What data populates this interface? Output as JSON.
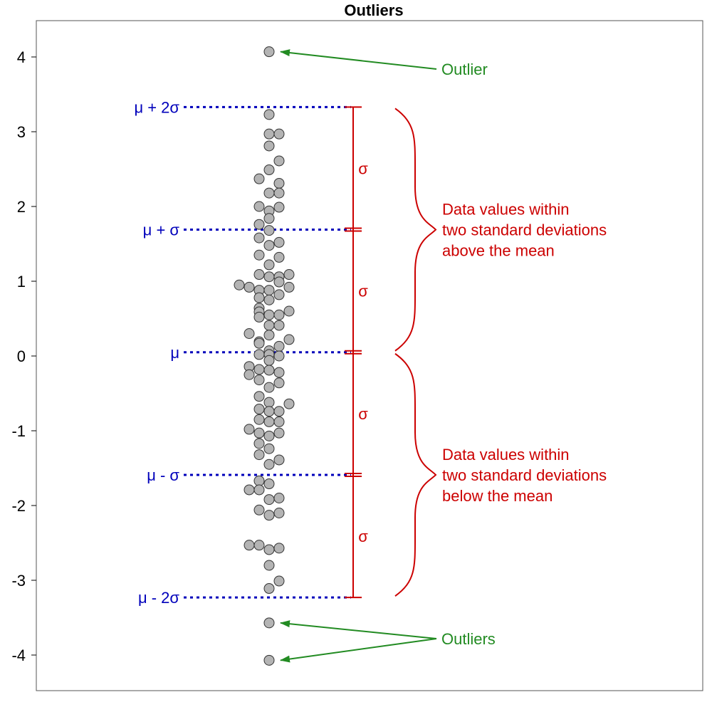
{
  "chart_data": {
    "type": "scatter",
    "title": "Outliers",
    "xlabel": "",
    "ylabel": "",
    "ylim": [
      -4.5,
      4.5
    ],
    "yticks": [
      4,
      3,
      2,
      1,
      0,
      -1,
      -2,
      -3,
      -4
    ],
    "ytick_labels": [
      "4",
      "3",
      "2",
      "1",
      "0",
      "-1",
      "-2",
      "-3",
      "-4"
    ],
    "grid": false,
    "reference_lines": [
      {
        "label": "μ + 2σ",
        "value": 3.33
      },
      {
        "label": "μ + σ",
        "value": 1.69
      },
      {
        "label": "μ",
        "value": 0.05
      },
      {
        "label": "μ - σ",
        "value": -1.59
      },
      {
        "label": "μ - 2σ",
        "value": -3.23
      }
    ],
    "sigma_label": "σ",
    "brace_annotations": [
      {
        "lines": [
          "Data values within",
          "two standard deviations",
          "above the mean"
        ],
        "from": 3.33,
        "to": 0.05
      },
      {
        "lines": [
          "Data values within",
          "two standard deviations",
          "below the mean"
        ],
        "from": 0.05,
        "to": -3.23
      }
    ],
    "outlier_annotations": [
      {
        "label": "Outlier",
        "targets": [
          4.07
        ]
      },
      {
        "label": "Outliers",
        "targets": [
          -3.57,
          -4.07
        ]
      }
    ],
    "colors": {
      "reference": "#0000bb",
      "sigma": "#cc0000",
      "outlier": "#228b22",
      "point_fill": "#b4b4b4",
      "point_stroke": "#333333"
    },
    "points": [
      {
        "x": 0,
        "y": 4.07
      },
      {
        "x": 0,
        "y": 3.23
      },
      {
        "x": 0,
        "y": 2.97
      },
      {
        "x": 1,
        "y": 2.97
      },
      {
        "x": 0,
        "y": 2.81
      },
      {
        "x": 1,
        "y": 2.61
      },
      {
        "x": 0,
        "y": 2.49
      },
      {
        "x": -1,
        "y": 2.37
      },
      {
        "x": 1,
        "y": 2.31
      },
      {
        "x": 0,
        "y": 2.18
      },
      {
        "x": 1,
        "y": 2.18
      },
      {
        "x": -1,
        "y": 2.0
      },
      {
        "x": 1,
        "y": 1.99
      },
      {
        "x": 0,
        "y": 1.94
      },
      {
        "x": 0,
        "y": 1.84
      },
      {
        "x": -1,
        "y": 1.76
      },
      {
        "x": 0,
        "y": 1.68
      },
      {
        "x": -1,
        "y": 1.58
      },
      {
        "x": 1,
        "y": 1.52
      },
      {
        "x": 0,
        "y": 1.48
      },
      {
        "x": -1,
        "y": 1.35
      },
      {
        "x": 1,
        "y": 1.32
      },
      {
        "x": 0,
        "y": 1.22
      },
      {
        "x": -1,
        "y": 1.09
      },
      {
        "x": 0,
        "y": 1.06
      },
      {
        "x": 1,
        "y": 1.06
      },
      {
        "x": 2,
        "y": 1.09
      },
      {
        "x": 1,
        "y": 0.99
      },
      {
        "x": -3,
        "y": 0.95
      },
      {
        "x": -2,
        "y": 0.92
      },
      {
        "x": -1,
        "y": 0.88
      },
      {
        "x": 0,
        "y": 0.88
      },
      {
        "x": 2,
        "y": 0.92
      },
      {
        "x": 1,
        "y": 0.82
      },
      {
        "x": -1,
        "y": 0.78
      },
      {
        "x": 0,
        "y": 0.75
      },
      {
        "x": -1,
        "y": 0.64
      },
      {
        "x": -1,
        "y": 0.59
      },
      {
        "x": 0,
        "y": 0.55
      },
      {
        "x": 1,
        "y": 0.55
      },
      {
        "x": 2,
        "y": 0.6
      },
      {
        "x": -1,
        "y": 0.52
      },
      {
        "x": 0,
        "y": 0.41
      },
      {
        "x": 1,
        "y": 0.41
      },
      {
        "x": -2,
        "y": 0.3
      },
      {
        "x": 0,
        "y": 0.28
      },
      {
        "x": 2,
        "y": 0.22
      },
      {
        "x": -1,
        "y": 0.19
      },
      {
        "x": -1,
        "y": 0.17
      },
      {
        "x": 1,
        "y": 0.13
      },
      {
        "x": 0,
        "y": 0.07
      },
      {
        "x": -1,
        "y": 0.02
      },
      {
        "x": 0,
        "y": 0.02
      },
      {
        "x": 1,
        "y": 0.0
      },
      {
        "x": 0,
        "y": -0.06
      },
      {
        "x": -2,
        "y": -0.14
      },
      {
        "x": -1,
        "y": -0.18
      },
      {
        "x": 1,
        "y": -0.22
      },
      {
        "x": -2,
        "y": -0.25
      },
      {
        "x": 0,
        "y": -0.19
      },
      {
        "x": -1,
        "y": -0.32
      },
      {
        "x": 0,
        "y": -0.42
      },
      {
        "x": 1,
        "y": -0.36
      },
      {
        "x": -1,
        "y": -0.54
      },
      {
        "x": 0,
        "y": -0.62
      },
      {
        "x": 2,
        "y": -0.64
      },
      {
        "x": -1,
        "y": -0.71
      },
      {
        "x": 0,
        "y": -0.74
      },
      {
        "x": 1,
        "y": -0.74
      },
      {
        "x": -1,
        "y": -0.85
      },
      {
        "x": 0,
        "y": -0.88
      },
      {
        "x": 1,
        "y": -0.88
      },
      {
        "x": -2,
        "y": -0.98
      },
      {
        "x": -1,
        "y": -1.03
      },
      {
        "x": 0,
        "y": -1.07
      },
      {
        "x": 1,
        "y": -1.03
      },
      {
        "x": -1,
        "y": -1.17
      },
      {
        "x": 0,
        "y": -1.24
      },
      {
        "x": -1,
        "y": -1.32
      },
      {
        "x": 1,
        "y": -1.39
      },
      {
        "x": 0,
        "y": -1.45
      },
      {
        "x": -1,
        "y": -1.67
      },
      {
        "x": 0,
        "y": -1.71
      },
      {
        "x": -2,
        "y": -1.79
      },
      {
        "x": -1,
        "y": -1.79
      },
      {
        "x": 0,
        "y": -1.92
      },
      {
        "x": 1,
        "y": -1.9
      },
      {
        "x": -1,
        "y": -2.06
      },
      {
        "x": 0,
        "y": -2.13
      },
      {
        "x": 1,
        "y": -2.1
      },
      {
        "x": -2,
        "y": -2.53
      },
      {
        "x": -1,
        "y": -2.53
      },
      {
        "x": 0,
        "y": -2.59
      },
      {
        "x": 1,
        "y": -2.57
      },
      {
        "x": 0,
        "y": -2.8
      },
      {
        "x": 1,
        "y": -3.01
      },
      {
        "x": 0,
        "y": -3.11
      },
      {
        "x": 0,
        "y": -3.57
      },
      {
        "x": 0,
        "y": -4.07
      }
    ]
  }
}
